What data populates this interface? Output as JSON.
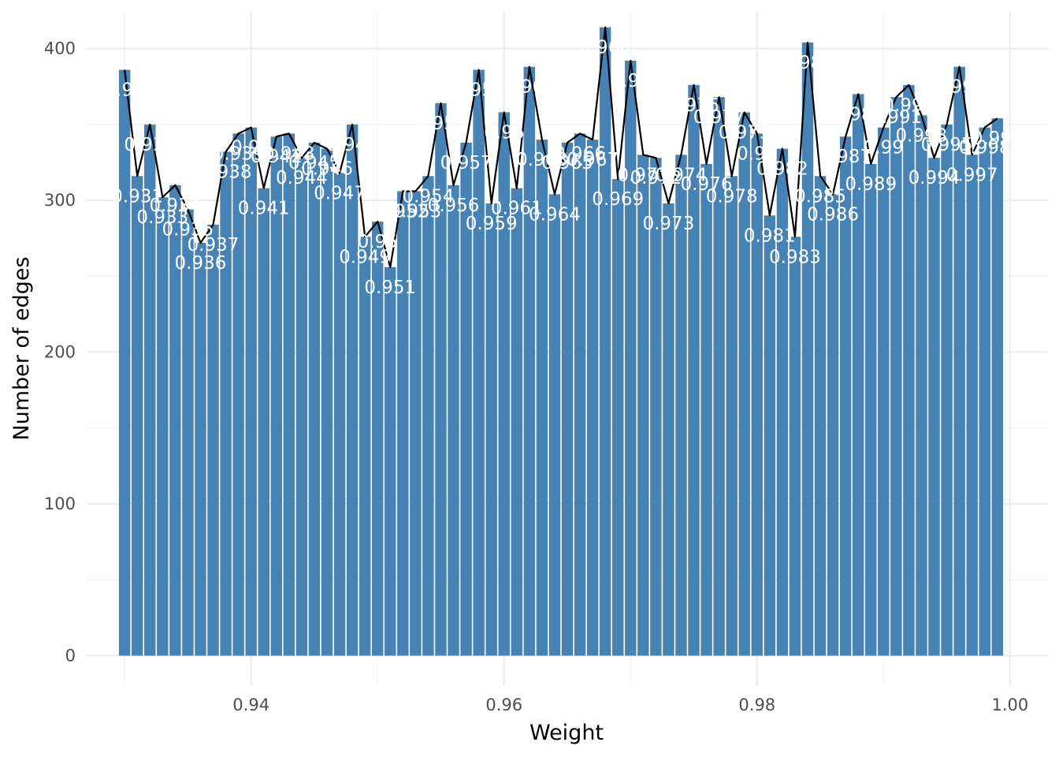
{
  "chart_data": {
    "type": "bar",
    "xlabel": "Weight",
    "ylabel": "Number of edges",
    "xlim": [
      0.927,
      1.003
    ],
    "ylim": [
      -20,
      432
    ],
    "xticks": [
      0.94,
      0.96,
      0.98,
      1.0
    ],
    "xtick_labels": [
      "0.94",
      "0.96",
      "0.98",
      "1.00"
    ],
    "yticks": [
      0,
      100,
      200,
      300,
      400
    ],
    "ytick_labels": [
      "0",
      "100",
      "200",
      "300",
      "400"
    ],
    "grid": true,
    "bar_color": "#4682B4",
    "line_color": "#000000",
    "label_color": "#ffffff",
    "x": [
      0.93,
      0.931,
      0.932,
      0.933,
      0.934,
      0.935,
      0.936,
      0.937,
      0.938,
      0.939,
      0.94,
      0.941,
      0.942,
      0.943,
      0.944,
      0.945,
      0.946,
      0.947,
      0.948,
      0.949,
      0.95,
      0.951,
      0.952,
      0.953,
      0.954,
      0.955,
      0.956,
      0.957,
      0.958,
      0.959,
      0.96,
      0.961,
      0.962,
      0.963,
      0.964,
      0.965,
      0.966,
      0.967,
      0.968,
      0.969,
      0.97,
      0.971,
      0.972,
      0.973,
      0.974,
      0.975,
      0.976,
      0.977,
      0.978,
      0.979,
      0.98,
      0.981,
      0.982,
      0.983,
      0.984,
      0.985,
      0.986,
      0.987,
      0.988,
      0.989,
      0.99,
      0.991,
      0.992,
      0.993,
      0.994,
      0.995,
      0.996,
      0.997,
      0.998,
      0.999
    ],
    "labels": [
      "0.93",
      "0.931",
      "0.932",
      "0.933",
      "0.934",
      "0.935",
      "0.936",
      "0.937",
      "0.938",
      "0.939",
      "0.94",
      "0.941",
      "0.942",
      "0.943",
      "0.944",
      "0.945",
      "0.946",
      "0.947",
      "0.948",
      "0.949",
      "0.95",
      "0.951",
      "0.952",
      "0.953",
      "0.954",
      "0.955",
      "0.956",
      "0.957",
      "0.958",
      "0.959",
      "0.96",
      "0.961",
      "0.962",
      "0.963",
      "0.964",
      "0.965",
      "0.966",
      "0.967",
      "0.968",
      "0.969",
      "0.97",
      "0.971",
      "0.972",
      "0.973",
      "0.974",
      "0.975",
      "0.976",
      "0.977",
      "0.978",
      "0.979",
      "0.98",
      "0.981",
      "0.982",
      "0.983",
      "0.984",
      "0.985",
      "0.986",
      "0.987",
      "0.988",
      "0.989",
      "0.99",
      "0.991",
      "0.992",
      "0.993",
      "0.994",
      "0.995",
      "0.996",
      "0.997",
      "0.998",
      "0.999"
    ],
    "values": [
      386,
      316,
      350,
      302,
      310,
      294,
      272,
      284,
      332,
      344,
      348,
      308,
      342,
      344,
      328,
      338,
      334,
      318,
      350,
      276,
      286,
      256,
      306,
      306,
      316,
      364,
      310,
      338,
      386,
      298,
      358,
      308,
      388,
      340,
      304,
      338,
      344,
      340,
      414,
      314,
      392,
      330,
      328,
      298,
      330,
      376,
      324,
      368,
      316,
      358,
      344,
      290,
      334,
      276,
      404,
      316,
      304,
      342,
      370,
      324,
      348,
      368,
      376,
      356,
      328,
      350,
      388,
      330,
      348,
      354
    ]
  }
}
